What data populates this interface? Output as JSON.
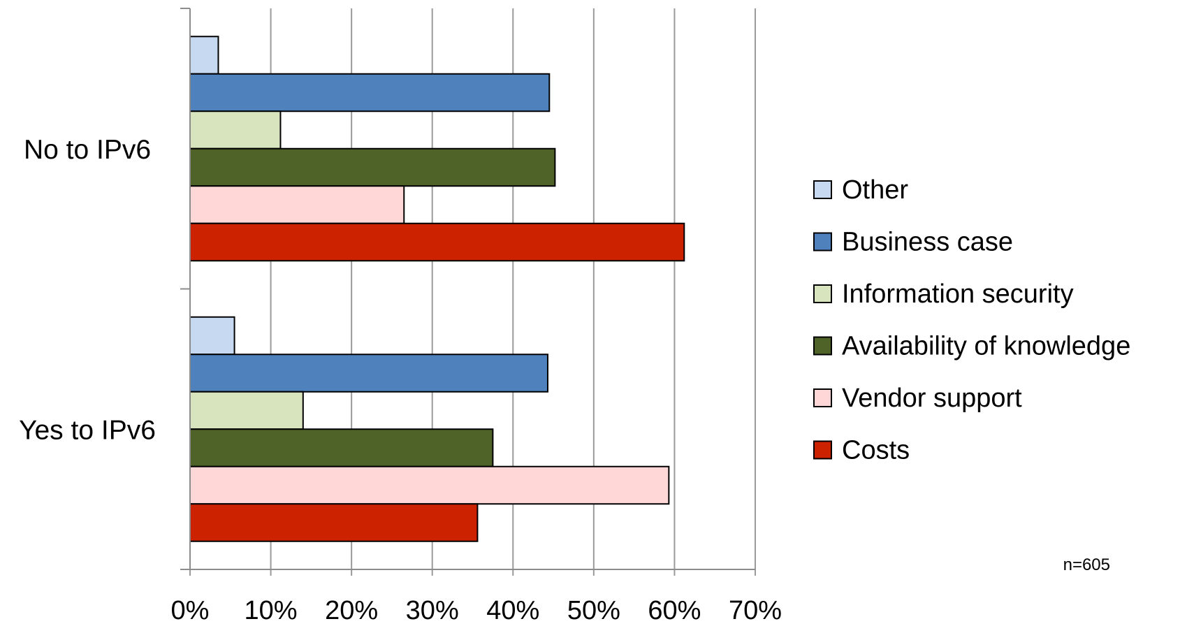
{
  "chart_data": {
    "type": "bar",
    "orientation": "horizontal",
    "categories": [
      "No to IPv6",
      "Yes to IPv6"
    ],
    "series": [
      {
        "name": "Other",
        "color": "#c6d9f1",
        "values": [
          3.5,
          5.5
        ]
      },
      {
        "name": "Business case",
        "color": "#4f81bd",
        "values": [
          44.5,
          44.3
        ]
      },
      {
        "name": "Information security",
        "color": "#d7e4bd",
        "values": [
          11.2,
          14.0
        ]
      },
      {
        "name": "Availability of knowledge",
        "color": "#4f6228",
        "values": [
          45.2,
          37.5
        ]
      },
      {
        "name": "Vendor support",
        "color": "#ffd7d7",
        "values": [
          26.5,
          59.3
        ]
      },
      {
        "name": "Costs",
        "color": "#cc2200",
        "values": [
          61.2,
          35.6
        ]
      }
    ],
    "xlim": [
      0,
      70
    ],
    "xticks": [
      "0%",
      "10%",
      "20%",
      "30%",
      "40%",
      "50%",
      "60%",
      "70%"
    ],
    "grid": "vertical",
    "legend_position": "right",
    "legend_entries": [
      "Other",
      "Business case",
      "Information security",
      "Availability of knowledge",
      "Vendor support",
      "Costs"
    ],
    "annotation": "n=605",
    "xlabel": "",
    "ylabel": "",
    "title": ""
  }
}
